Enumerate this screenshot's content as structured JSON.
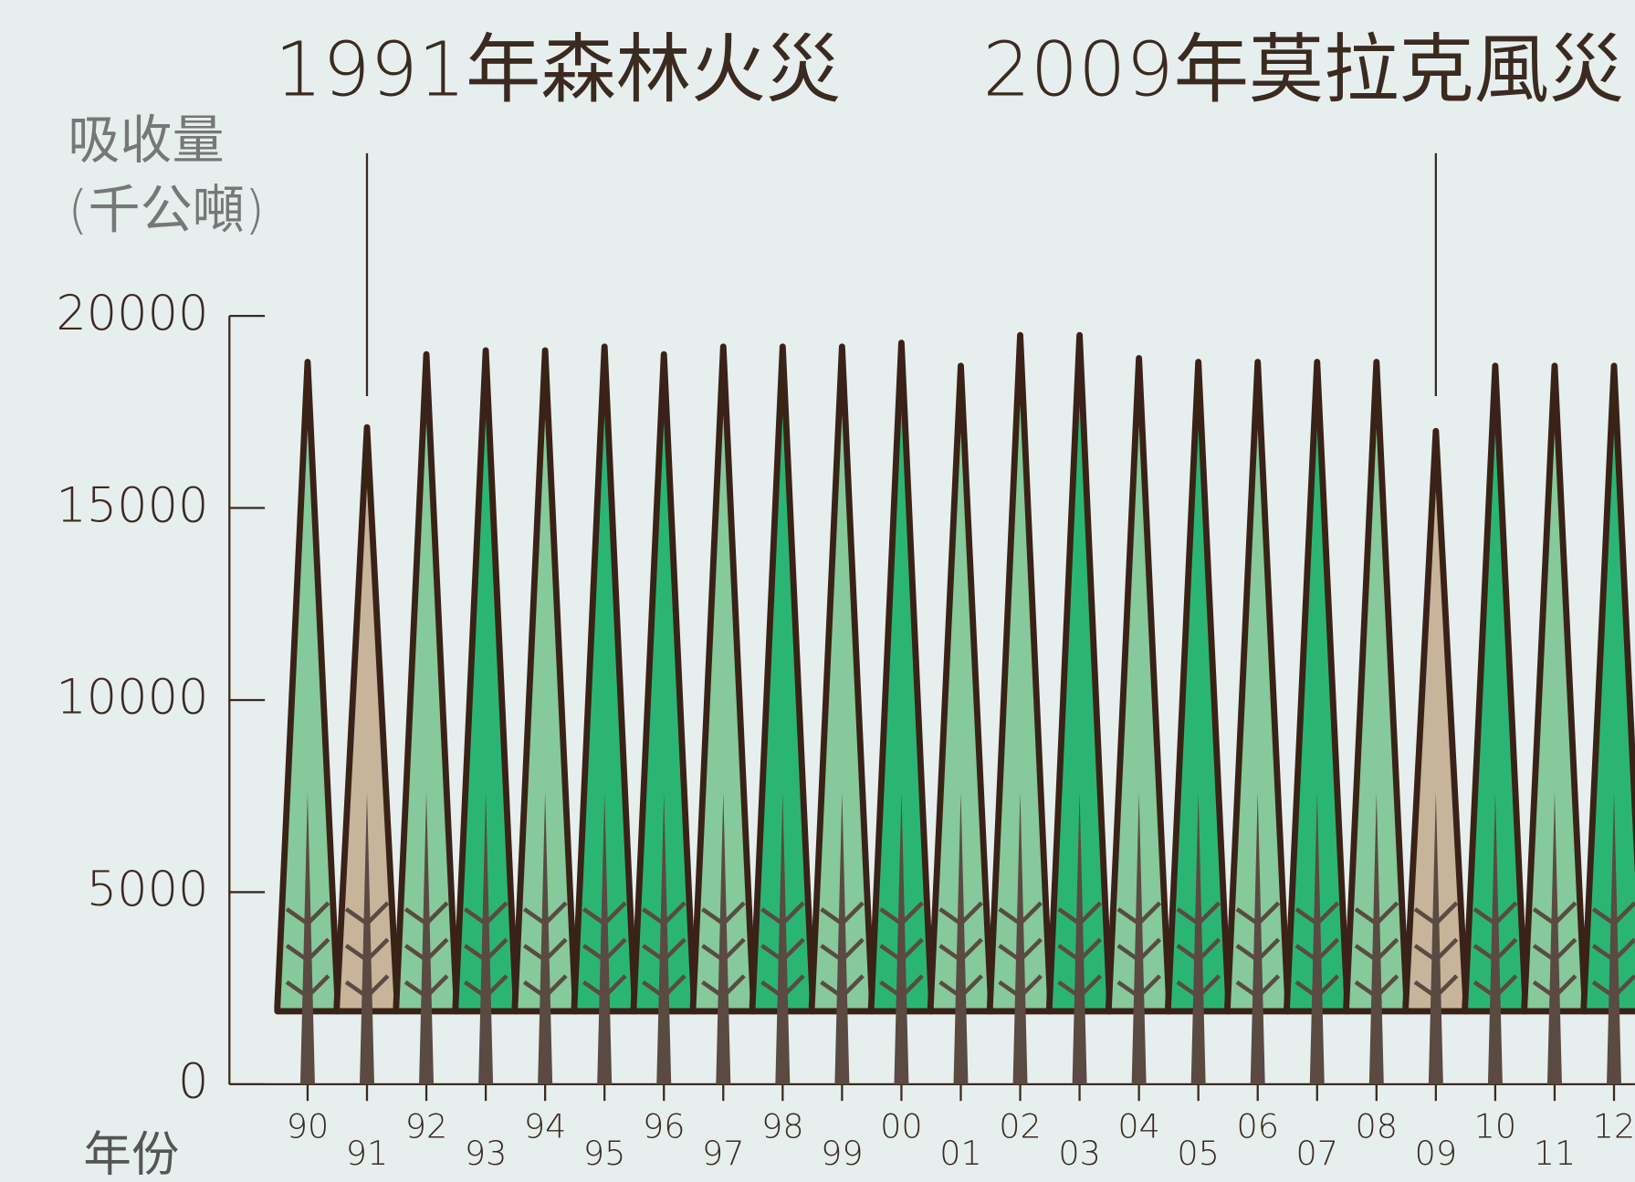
{
  "chart_data": {
    "type": "tree-bar",
    "ylabel": [
      "吸收量",
      "(千公噸)"
    ],
    "xlabel": "年份",
    "categories": [
      "90",
      "91",
      "92",
      "93",
      "94",
      "95",
      "96",
      "97",
      "98",
      "99",
      "00",
      "01",
      "02",
      "03",
      "04",
      "05",
      "06",
      "07",
      "08",
      "09",
      "10",
      "11",
      "12"
    ],
    "values": [
      18800,
      17100,
      19000,
      19100,
      19100,
      19200,
      19000,
      19200,
      19200,
      19200,
      19300,
      18700,
      19500,
      19500,
      18900,
      18800,
      18800,
      18800,
      18800,
      17000,
      18700,
      18700,
      18700
    ],
    "colors": [
      "#86c99a",
      "#c7b49a",
      "#86c99a",
      "#2bb573",
      "#86c99a",
      "#2bb573",
      "#2bb573",
      "#86c99a",
      "#2bb573",
      "#86c99a",
      "#2bb573",
      "#86c99a",
      "#86c99a",
      "#2bb573",
      "#86c99a",
      "#2bb573",
      "#86c99a",
      "#2bb573",
      "#86c99a",
      "#c7b49a",
      "#2bb573",
      "#86c99a",
      "#2bb573"
    ],
    "ylim": [
      0,
      20000
    ],
    "yticks": [
      0,
      5000,
      10000,
      15000,
      20000
    ],
    "annotations": [
      {
        "text": "1991年森林火災",
        "category": 1
      },
      {
        "text": "2009年莫拉克風災",
        "category": 19
      }
    ]
  }
}
